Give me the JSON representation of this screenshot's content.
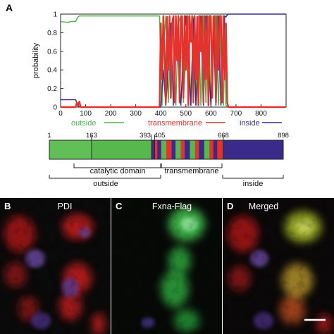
{
  "panels": {
    "a": "A",
    "b": "B",
    "c": "C",
    "d": "D"
  },
  "micrographs": {
    "b_label": "PDI",
    "c_label": "Fxna-Flag",
    "d_label": "Merged"
  },
  "colors": {
    "outside": "#4fb24a",
    "transmembrane": "#e2332d",
    "inside": "#3a2a8a",
    "light_green": "#62bf58",
    "mid_green": "#56b84d"
  },
  "chart_data": {
    "type": "line",
    "ylabel": "probability",
    "xlabel": "",
    "xlim": [
      0,
      900
    ],
    "ylim": [
      0,
      1
    ],
    "x_ticks": [
      "0",
      "100",
      "200",
      "300",
      "400",
      "500",
      "600",
      "700",
      "800"
    ],
    "y_ticks": [
      "0",
      "0.2",
      "0.4",
      "0.6",
      "0.8",
      "1"
    ],
    "legend": [
      "outside",
      "transmembrane",
      "inside"
    ],
    "series": [
      {
        "name": "outside",
        "x": [
          0,
          30,
          40,
          60,
          65,
          70,
          75,
          80,
          390,
          395,
          400,
          405,
          410,
          420,
          430,
          440,
          450,
          460,
          470,
          480,
          490,
          500,
          510,
          520,
          530,
          540,
          550,
          560,
          570,
          580,
          590,
          600,
          610,
          620,
          630,
          640,
          650,
          655,
          660,
          665,
          670,
          898
        ],
        "y": [
          0.92,
          0.91,
          0.92,
          0.92,
          0.95,
          0.97,
          0.98,
          0.98,
          0.98,
          0.98,
          0.4,
          0.02,
          0.6,
          0.98,
          0.05,
          0.8,
          0.95,
          0.02,
          0.9,
          0.98,
          0.05,
          0.6,
          0.98,
          0.02,
          0.97,
          0.02,
          0.98,
          0.02,
          0.98,
          0.05,
          0.98,
          0.02,
          0.98,
          0.98,
          0.02,
          0.97,
          0.02,
          0.6,
          0.02,
          0.01,
          0.0,
          0.0
        ]
      },
      {
        "name": "transmembrane",
        "x": [
          0,
          60,
          65,
          70,
          75,
          80,
          395,
          400,
          405,
          410,
          415,
          420,
          425,
          430,
          435,
          440,
          445,
          450,
          455,
          460,
          465,
          470,
          475,
          480,
          485,
          490,
          495,
          500,
          505,
          510,
          515,
          520,
          525,
          530,
          535,
          540,
          545,
          550,
          555,
          560,
          565,
          570,
          575,
          580,
          585,
          590,
          595,
          600,
          605,
          610,
          615,
          620,
          625,
          630,
          635,
          640,
          645,
          650,
          655,
          660,
          665,
          670,
          898
        ],
        "y": [
          0.0,
          0.0,
          0.05,
          0.02,
          0.06,
          0.0,
          0.0,
          0.9,
          0.3,
          0.98,
          0.6,
          0.05,
          0.97,
          0.4,
          0.98,
          0.1,
          0.9,
          0.98,
          0.05,
          0.98,
          0.5,
          0.98,
          0.05,
          0.97,
          0.98,
          0.1,
          0.98,
          0.4,
          0.98,
          0.02,
          0.98,
          0.7,
          0.98,
          0.05,
          0.98,
          0.3,
          0.97,
          0.02,
          0.98,
          0.6,
          0.98,
          0.05,
          0.98,
          0.3,
          0.98,
          0.02,
          0.98,
          0.98,
          0.1,
          0.97,
          0.98,
          0.05,
          0.98,
          0.4,
          0.98,
          0.98,
          0.05,
          0.98,
          0.3,
          0.9,
          0.05,
          0.0,
          0.0
        ]
      },
      {
        "name": "inside",
        "x": [
          0,
          60,
          65,
          70,
          80,
          400,
          410,
          420,
          440,
          450,
          460,
          480,
          490,
          500,
          520,
          530,
          540,
          560,
          570,
          580,
          600,
          610,
          620,
          630,
          640,
          650,
          655,
          660,
          665,
          670,
          680,
          898
        ],
        "y": [
          0.08,
          0.08,
          0.04,
          0.01,
          0.0,
          0.0,
          0.4,
          0.02,
          0.9,
          0.02,
          0.98,
          0.02,
          0.6,
          0.98,
          0.02,
          0.95,
          0.02,
          0.98,
          0.02,
          0.98,
          0.02,
          0.9,
          0.02,
          0.98,
          0.02,
          0.5,
          0.98,
          0.97,
          0.99,
          1.0,
          1.0,
          1.0
        ]
      }
    ]
  },
  "domain_bar": {
    "positions": [
      "1",
      "163",
      "393",
      "405",
      "668",
      "898"
    ],
    "segments": [
      {
        "start": 1,
        "end": 163,
        "region": "outside_light"
      },
      {
        "start": 163,
        "end": 393,
        "region": "outside"
      },
      {
        "start": 393,
        "end": 405,
        "region": "inside"
      },
      {
        "start": 405,
        "end": 668,
        "region": "transmembrane"
      },
      {
        "start": 668,
        "end": 898,
        "region": "inside"
      }
    ],
    "stripes": [
      {
        "start": 405,
        "end": 415,
        "region": "transmembrane"
      },
      {
        "start": 415,
        "end": 430,
        "region": "inside"
      },
      {
        "start": 430,
        "end": 450,
        "region": "outside"
      },
      {
        "start": 450,
        "end": 470,
        "region": "transmembrane"
      },
      {
        "start": 470,
        "end": 485,
        "region": "inside"
      },
      {
        "start": 485,
        "end": 505,
        "region": "outside"
      },
      {
        "start": 505,
        "end": 520,
        "region": "transmembrane"
      },
      {
        "start": 520,
        "end": 540,
        "region": "inside"
      },
      {
        "start": 540,
        "end": 560,
        "region": "outside"
      },
      {
        "start": 560,
        "end": 575,
        "region": "transmembrane"
      },
      {
        "start": 575,
        "end": 595,
        "region": "inside"
      },
      {
        "start": 595,
        "end": 615,
        "region": "outside"
      },
      {
        "start": 615,
        "end": 630,
        "region": "transmembrane"
      },
      {
        "start": 630,
        "end": 645,
        "region": "inside"
      },
      {
        "start": 645,
        "end": 668,
        "region": "transmembrane"
      }
    ],
    "domain_labels": {
      "catalytic": "catalytic domain",
      "transmembrane": "transmembrane",
      "outside": "outside",
      "inside": "inside"
    }
  }
}
